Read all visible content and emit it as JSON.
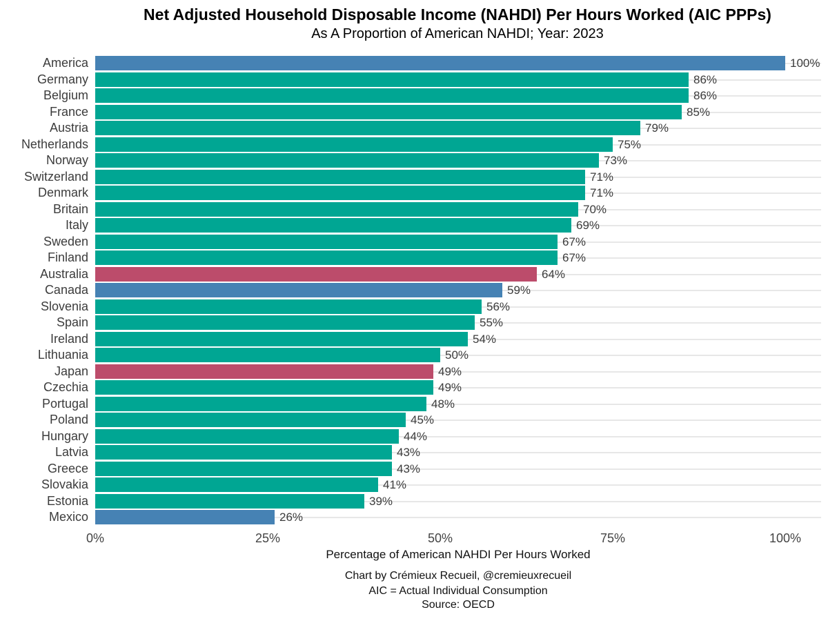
{
  "title": "Net Adjusted Household Disposable Income (NAHDI) Per Hours Worked (AIC PPPs)",
  "subtitle": "As A Proportion of American NAHDI; Year: 2023",
  "chart_data": {
    "type": "bar",
    "orientation": "horizontal",
    "title": "Net Adjusted Household Disposable Income (NAHDI) Per Hours Worked (AIC PPPs)",
    "subtitle": "As A Proportion of American NAHDI; Year: 2023",
    "categories": [
      "America",
      "Germany",
      "Belgium",
      "France",
      "Austria",
      "Netherlands",
      "Norway",
      "Switzerland",
      "Denmark",
      "Britain",
      "Italy",
      "Sweden",
      "Finland",
      "Australia",
      "Canada",
      "Slovenia",
      "Spain",
      "Ireland",
      "Lithuania",
      "Japan",
      "Czechia",
      "Portugal",
      "Poland",
      "Hungary",
      "Latvia",
      "Greece",
      "Slovakia",
      "Estonia",
      "Mexico"
    ],
    "values": [
      100,
      86,
      86,
      85,
      79,
      75,
      73,
      71,
      71,
      70,
      69,
      67,
      67,
      64,
      59,
      56,
      55,
      54,
      50,
      49,
      49,
      48,
      45,
      44,
      43,
      43,
      41,
      39,
      26
    ],
    "value_labels": [
      "100%",
      "86%",
      "86%",
      "85%",
      "79%",
      "75%",
      "73%",
      "71%",
      "71%",
      "70%",
      "69%",
      "67%",
      "67%",
      "64%",
      "59%",
      "56%",
      "55%",
      "54%",
      "50%",
      "49%",
      "49%",
      "48%",
      "45%",
      "44%",
      "43%",
      "43%",
      "41%",
      "39%",
      "26%"
    ],
    "bar_color_keys": [
      "blue",
      "teal",
      "teal",
      "teal",
      "teal",
      "teal",
      "teal",
      "teal",
      "teal",
      "teal",
      "teal",
      "teal",
      "teal",
      "red",
      "blue",
      "teal",
      "teal",
      "teal",
      "teal",
      "red",
      "teal",
      "teal",
      "teal",
      "teal",
      "teal",
      "teal",
      "teal",
      "teal",
      "blue"
    ],
    "palette": {
      "blue": "#4682B4",
      "teal": "#00A693",
      "red": "#BC4C6B"
    },
    "gridline_color": "#e7e7e7",
    "xlabel": "Percentage of American NAHDI Per Hours Worked",
    "xlim": [
      0,
      100
    ],
    "xticks": [
      0,
      25,
      50,
      75,
      100
    ],
    "xtick_labels": [
      "0%",
      "25%",
      "50%",
      "75%",
      "100%"
    ],
    "grid": "category-rows-horizontal-only",
    "legend": "none"
  },
  "footer": {
    "line1": "Chart by Crémieux Recueil, @cremieuxrecueil",
    "line2": "AIC = Actual Individual Consumption",
    "line3": "Source: OECD"
  }
}
